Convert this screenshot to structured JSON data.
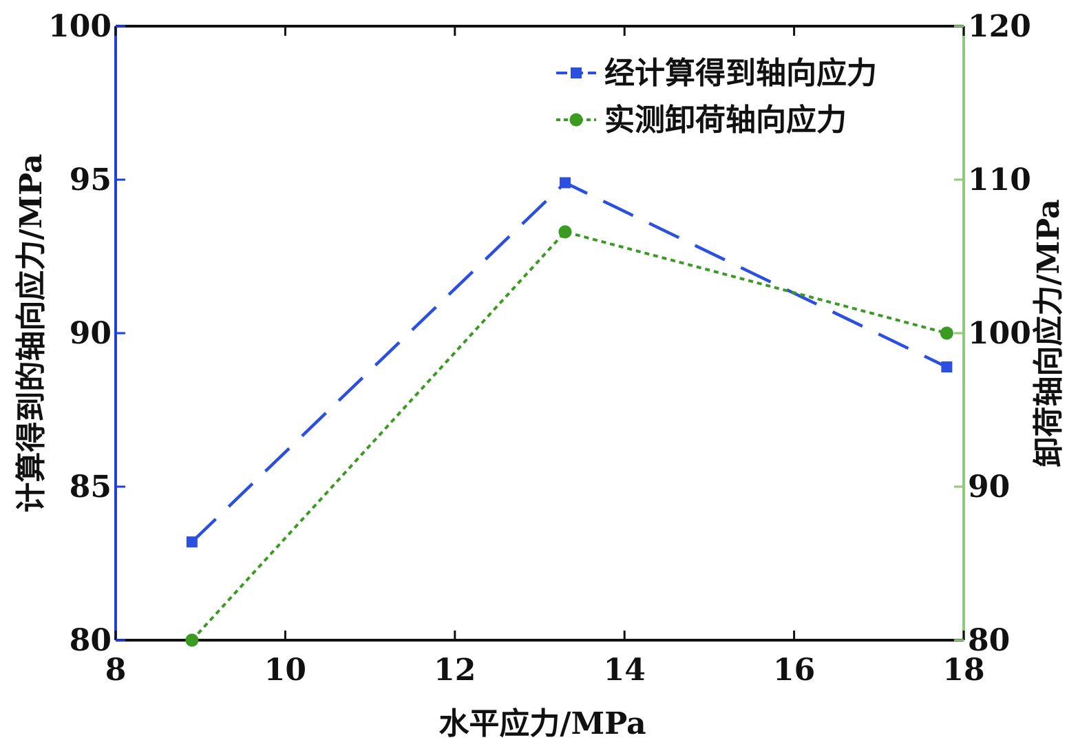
{
  "chart_data": {
    "type": "line",
    "title": "",
    "xlabel": "水平应力/MPa",
    "ylabel_left": "计算得到的轴向应力/MPa",
    "ylabel_right": "卸荷轴向应力/MPa",
    "xlim": [
      8,
      18
    ],
    "ylim_left": [
      80,
      100
    ],
    "ylim_right": [
      80,
      120
    ],
    "x_ticks": [
      "8",
      "10",
      "12",
      "14",
      "16",
      "18"
    ],
    "y_ticks_left": [
      "80",
      "85",
      "90",
      "95",
      "100"
    ],
    "y_ticks_right": [
      "80",
      "90",
      "100",
      "110",
      "120"
    ],
    "grid": false,
    "legend_position": "top-right",
    "colors": {
      "left_axis": "#1f3fe0",
      "right_axis": "#8fc97a",
      "frame": "#111111"
    },
    "series": [
      {
        "name": "经计算得到轴向应力",
        "axis": "left",
        "color": "#2b4fe0",
        "line_style": "long-dash",
        "marker": "square",
        "x": [
          8.9,
          13.3,
          17.8
        ],
        "y": [
          83.2,
          94.9,
          88.9
        ]
      },
      {
        "name": "实测卸荷轴向应力",
        "axis": "right",
        "color": "#3a9a22",
        "line_style": "dotted",
        "marker": "circle",
        "x": [
          8.9,
          13.3,
          17.8
        ],
        "y": [
          80,
          106.6,
          100
        ]
      }
    ]
  }
}
